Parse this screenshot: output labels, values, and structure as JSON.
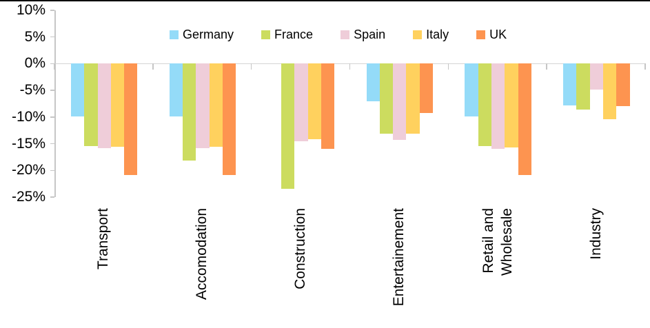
{
  "chart_data": {
    "type": "bar",
    "grouping": "grouped-vertical",
    "title": "",
    "xlabel": "",
    "ylabel": "",
    "categories": [
      "Transport",
      "Accomodation",
      "Construction",
      "Entertainement",
      "Retail and\nWholesale",
      "Industry"
    ],
    "series": [
      {
        "name": "Germany",
        "color": "#94DBF8",
        "values": [
          -9.9,
          -9.9,
          null,
          -7.1,
          -9.9,
          -7.8
        ]
      },
      {
        "name": "France",
        "color": "#CCDC5F",
        "values": [
          -15.5,
          -18.2,
          -23.5,
          -13.1,
          -15.5,
          -8.6
        ]
      },
      {
        "name": "Spain",
        "color": "#EFCDD9",
        "values": [
          -15.8,
          -15.8,
          -14.6,
          -14.3,
          -15.9,
          -4.9
        ]
      },
      {
        "name": "Italy",
        "color": "#FFD15E",
        "values": [
          -15.6,
          -15.6,
          -14.2,
          -13.1,
          -15.7,
          -10.4
        ]
      },
      {
        "name": "UK",
        "color": "#FD9450",
        "values": [
          -20.9,
          -20.9,
          -15.9,
          -9.3,
          -20.9,
          -8.0
        ]
      }
    ],
    "y_axis": {
      "min": -25,
      "max": 10,
      "step": 5,
      "format": "percent",
      "tick_labels": [
        "10%",
        "5%",
        "0%",
        "-5%",
        "-10%",
        "-15%",
        "-20%",
        "-25%"
      ]
    },
    "legend": {
      "position": "top",
      "entries": [
        "Germany",
        "France",
        "Spain",
        "Italy",
        "UK"
      ]
    },
    "grid": "zero-line-only"
  },
  "colors": {
    "background": "#FFFFFF",
    "axis_line": "#C6C6C6",
    "zero_line": "#D5D5D5",
    "text": "#000000",
    "top_border": "#000000"
  }
}
